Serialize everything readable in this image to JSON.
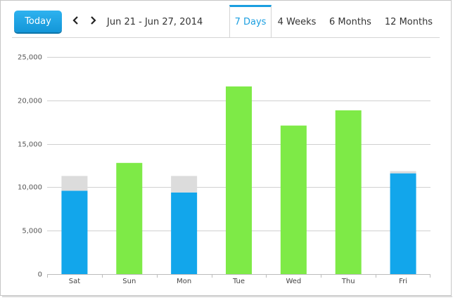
{
  "toolbar": {
    "today_label": "Today",
    "prev_icon": "chevron-left-icon",
    "next_icon": "chevron-right-icon",
    "date_range": "Jun 21 - Jun 27, 2014"
  },
  "tabs": [
    {
      "label": "7 Days",
      "active": true
    },
    {
      "label": "4 Weeks",
      "active": false
    },
    {
      "label": "6 Months",
      "active": false
    },
    {
      "label": "12 Months",
      "active": false
    }
  ],
  "colors": {
    "accent": "#1a9ee0",
    "weekend_bar": "#12a6eb",
    "weekday_bar": "#7eea47",
    "remainder_bar": "#dcdcdc",
    "grid": "#d0d0d0"
  },
  "chart_data": {
    "type": "bar",
    "stacked": true,
    "categories": [
      "Sat",
      "Sun",
      "Mon",
      "Tue",
      "Wed",
      "Thu",
      "Fri"
    ],
    "series": [
      {
        "key": "primary",
        "values": [
          9600,
          12800,
          9400,
          21600,
          17100,
          18850,
          11600
        ],
        "colors": [
          "#12a6eb",
          "#7eea47",
          "#12a6eb",
          "#7eea47",
          "#7eea47",
          "#7eea47",
          "#12a6eb"
        ]
      },
      {
        "key": "remainder",
        "values": [
          1700,
          0,
          1900,
          0,
          0,
          0,
          250
        ],
        "colors": [
          "#dcdcdc",
          "#dcdcdc",
          "#dcdcdc",
          "#dcdcdc",
          "#dcdcdc",
          "#dcdcdc",
          "#dcdcdc"
        ]
      }
    ],
    "ylim": [
      0,
      25000
    ],
    "yticks": [
      0,
      5000,
      10000,
      15000,
      20000,
      25000
    ],
    "ytick_labels": [
      "0",
      "5,000",
      "10,000",
      "15,000",
      "20,000",
      "25,000"
    ],
    "grid": true
  }
}
